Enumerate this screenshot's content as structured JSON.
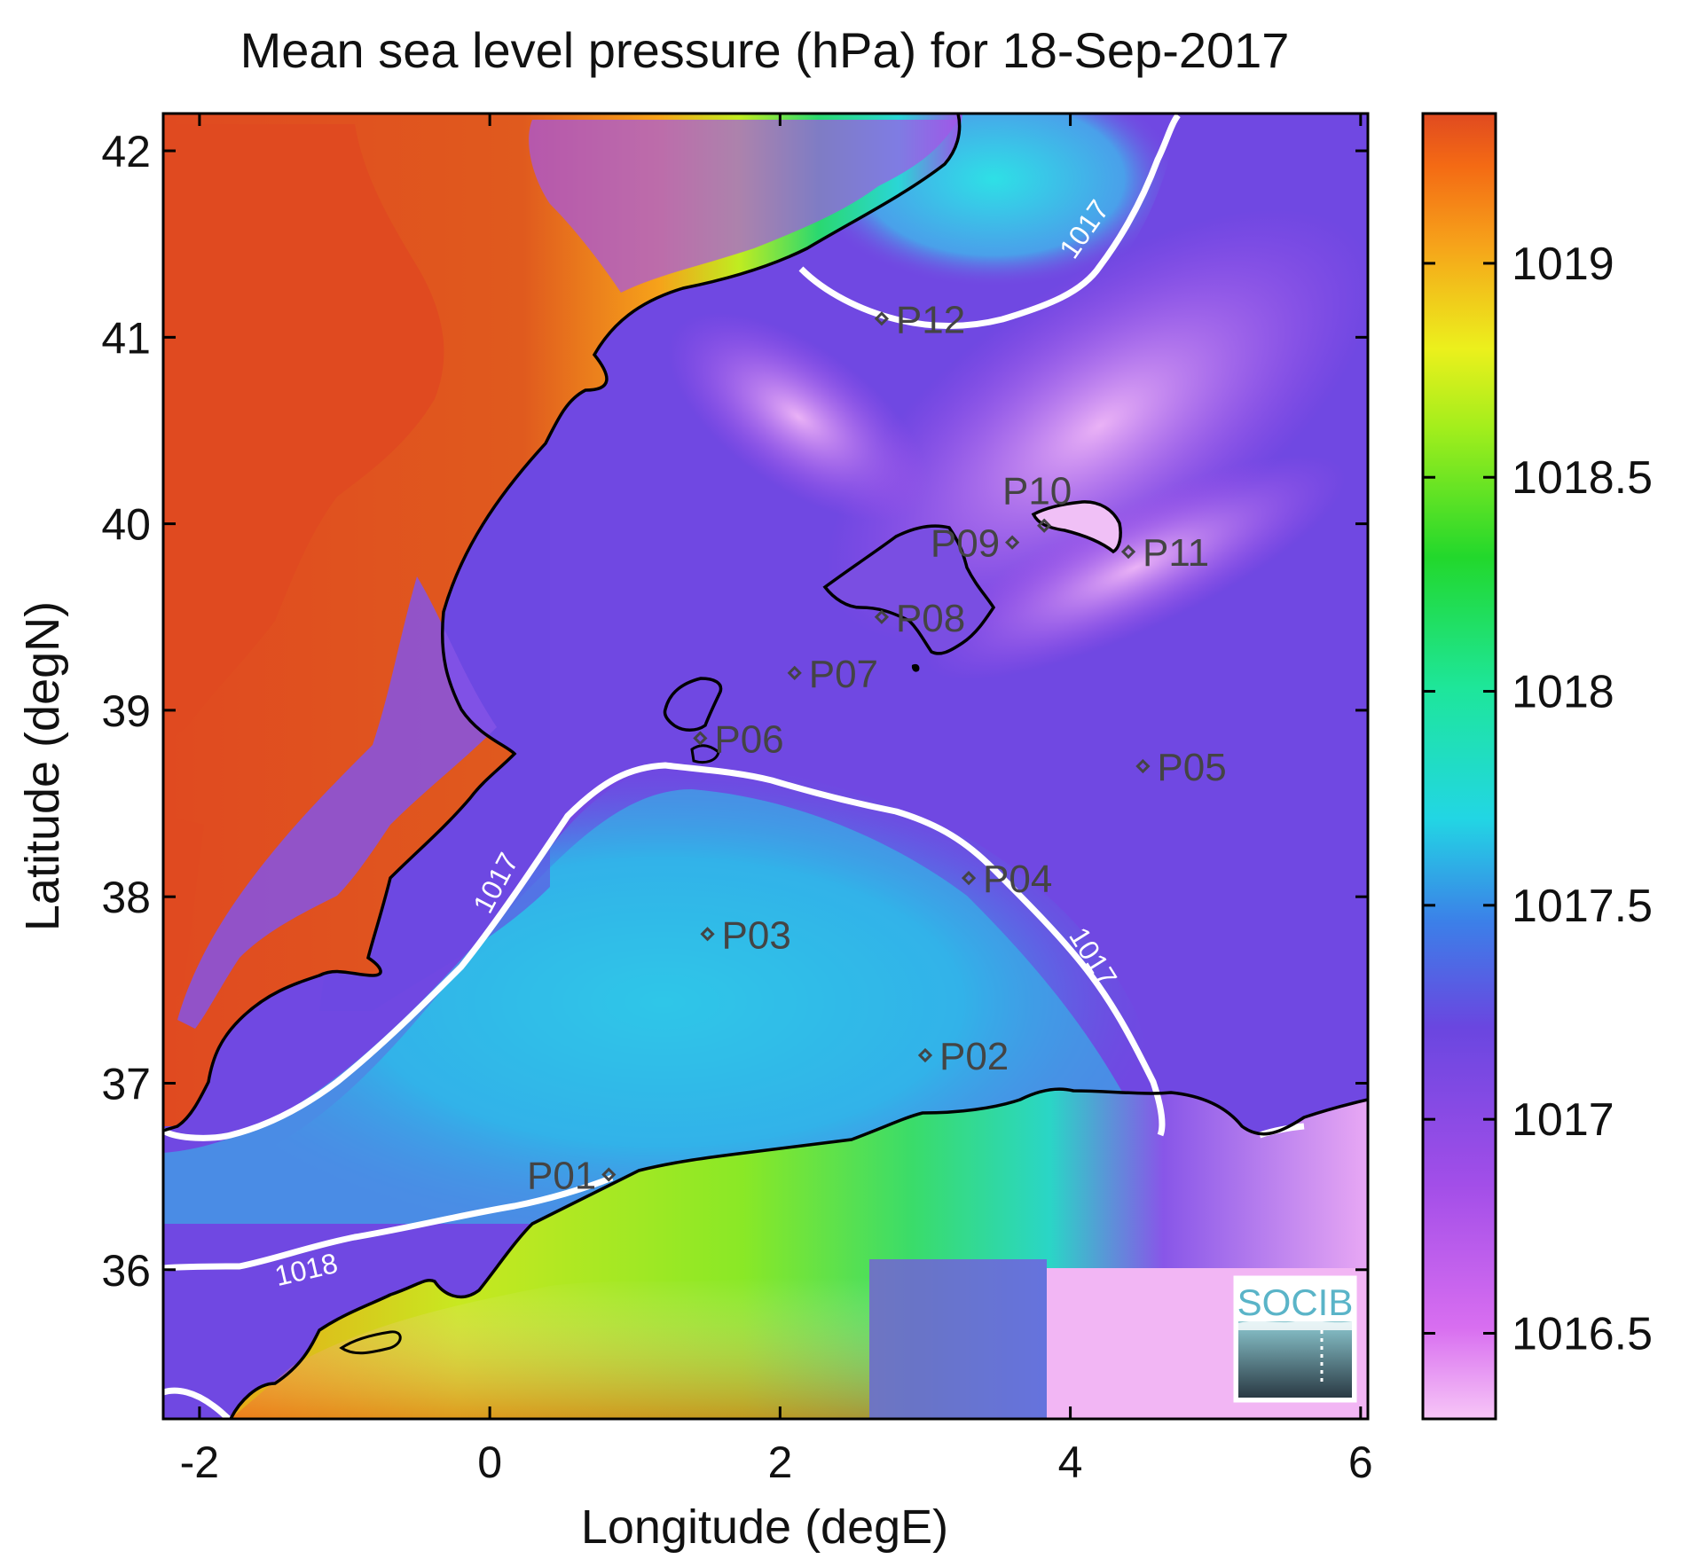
{
  "title": "Mean sea level pressure (hPa) for 18-Sep-2017",
  "xlabel": "Longitude (degE)",
  "ylabel": "Latitude (degN)",
  "x_ticks": [
    "-2",
    "0",
    "2",
    "4",
    "6"
  ],
  "y_ticks": [
    "36",
    "37",
    "38",
    "39",
    "40",
    "41",
    "42"
  ],
  "x_tick_values": [
    -2,
    0,
    2,
    4,
    6
  ],
  "y_tick_values": [
    36,
    37,
    38,
    39,
    40,
    41,
    42
  ],
  "xlim": [
    -2.25,
    6.05
  ],
  "ylim": [
    35.2,
    42.2
  ],
  "colorbar": {
    "ticks": [
      "1016.5",
      "1017",
      "1017.5",
      "1018",
      "1018.5",
      "1019"
    ],
    "tick_values": [
      1016.5,
      1017,
      1017.5,
      1018,
      1018.5,
      1019
    ],
    "range": [
      1016.3,
      1019.35
    ]
  },
  "contour_labels": [
    {
      "text": "1017",
      "lon": 4.15,
      "lat": 41.55,
      "angle": -55
    },
    {
      "text": "1017",
      "lon": 0.1,
      "lat": 38.05,
      "angle": -62
    },
    {
      "text": "1017",
      "lon": 4.1,
      "lat": 37.65,
      "angle": 58
    },
    {
      "text": "1018",
      "lon": -1.25,
      "lat": 35.95,
      "angle": -13
    }
  ],
  "stations": [
    {
      "label": "P01",
      "lon": 0.82,
      "lat": 36.51,
      "label_side": "left"
    },
    {
      "label": "P02",
      "lon": 3.0,
      "lat": 37.15,
      "label_side": "right"
    },
    {
      "label": "P03",
      "lon": 1.5,
      "lat": 37.8,
      "label_side": "right"
    },
    {
      "label": "P04",
      "lon": 3.3,
      "lat": 38.1,
      "label_side": "right"
    },
    {
      "label": "P05",
      "lon": 4.5,
      "lat": 38.7,
      "label_side": "right"
    },
    {
      "label": "P06",
      "lon": 1.45,
      "lat": 38.85,
      "label_side": "right"
    },
    {
      "label": "P07",
      "lon": 2.1,
      "lat": 39.2,
      "label_side": "right"
    },
    {
      "label": "P08",
      "lon": 2.7,
      "lat": 39.5,
      "label_side": "right"
    },
    {
      "label": "P09",
      "lon": 3.6,
      "lat": 39.9,
      "label_side": "left"
    },
    {
      "label": "P10",
      "lon": 3.82,
      "lat": 39.99,
      "label_side": "above"
    },
    {
      "label": "P11",
      "lon": 4.4,
      "lat": 39.85,
      "label_side": "right"
    },
    {
      "label": "P12",
      "lon": 2.7,
      "lat": 41.1,
      "label_side": "right"
    }
  ],
  "logo_text": "SOCIB",
  "colors": {
    "contour": "#ffffff",
    "coast": "#000000",
    "station": "#444444",
    "logo": "#5ab4c8"
  }
}
